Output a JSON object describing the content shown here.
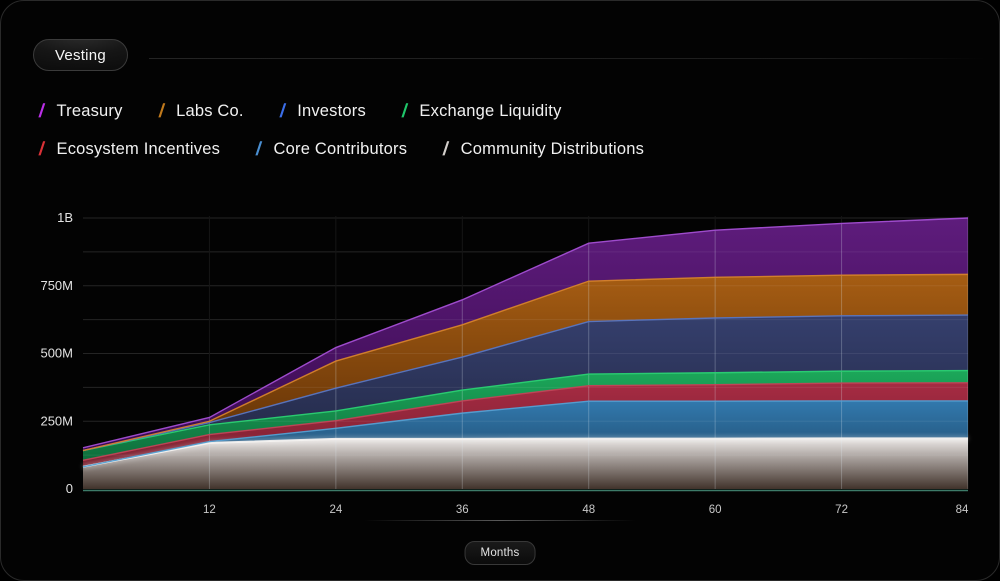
{
  "header": {
    "vesting_label": "Vesting"
  },
  "footer": {
    "x_unit_label": "Months"
  },
  "colors": {
    "background": "#030303",
    "card_border": "#2a2a2a",
    "grid_over_black_h": "#242424",
    "grid_over_black_v": "#161616",
    "grid_over_fill_v": "rgba(225,235,245,0.26)",
    "grid_over_fill_h": "rgba(255,255,255,0.07)",
    "zero_line": "#41826f",
    "y_axis_text": "#e2e2e2",
    "x_axis_text": "#c9c9c9"
  },
  "chart_data": {
    "type": "area",
    "stacked": true,
    "xlabel": "Months",
    "x": [
      0,
      12,
      24,
      36,
      48,
      60,
      72,
      84
    ],
    "x_ticks": [
      12,
      24,
      36,
      48,
      60,
      72,
      84
    ],
    "xlim": [
      0,
      84
    ],
    "ylim_millions": [
      0,
      1000
    ],
    "y_ticks": [
      {
        "value": 0,
        "label": "0"
      },
      {
        "value": 250,
        "label": "250M"
      },
      {
        "value": 500,
        "label": "500M"
      },
      {
        "value": 750,
        "label": "750M"
      },
      {
        "value": 1000,
        "label": "1B"
      }
    ],
    "grid_minor_step_millions": 125,
    "legend_rows": [
      [
        "Treasury",
        "Labs Co.",
        "Investors",
        "Exchange Liquidity"
      ],
      [
        "Ecosystem Incentives",
        "Core Contributors",
        "Community Distributions"
      ]
    ],
    "series_bottom_to_top": [
      {
        "name": "Community Distributions",
        "values_millions": [
          82,
          170,
          185,
          185,
          186,
          186,
          187,
          187
        ],
        "fill_top": "#ece9e7",
        "fill_mid": "#a29a96",
        "fill_bottom": "#41332b",
        "line": "#f4f2f0",
        "legend_color": "#d3cfcb"
      },
      {
        "name": "Core Contributors",
        "values_millions": [
          0,
          5,
          39,
          95,
          138,
          138,
          138,
          138
        ],
        "fill_top": "#3279ae",
        "fill_bottom": "#1f4a6b",
        "line": "#55a0d3",
        "legend_color": "#4a8fd2"
      },
      {
        "name": "Ecosystem Incentives",
        "values_millions": [
          24,
          26,
          28,
          45,
          57,
          61,
          66,
          67
        ],
        "fill_top": "#a62b43",
        "fill_bottom": "#79202f",
        "line": "#c24458",
        "legend_color": "#da3137"
      },
      {
        "name": "Exchange Liquidity",
        "values_millions": [
          36,
          36,
          36,
          40,
          43,
          44,
          44,
          45
        ],
        "fill_top": "#1ca85a",
        "fill_bottom": "#0e6e3c",
        "line": "#2bd173",
        "legend_color": "#1fc76a"
      },
      {
        "name": "Investors",
        "values_millions": [
          0,
          8,
          84,
          122,
          194,
          202,
          204,
          205
        ],
        "fill_top": "#353f6d",
        "fill_bottom": "#232946",
        "line": "#5a76c2",
        "legend_color": "#3b6ee8"
      },
      {
        "name": "Labs Co.",
        "values_millions": [
          0,
          5,
          100,
          119,
          149,
          150,
          150,
          150
        ],
        "fill_top": "#a65d13",
        "fill_bottom": "#5f3006",
        "line": "#d6832b",
        "legend_color": "#c17a1c"
      },
      {
        "name": "Treasury",
        "values_millions": [
          10,
          14,
          50,
          92,
          140,
          174,
          191,
          208
        ],
        "fill_top": "#5e1c7c",
        "fill_bottom": "#3a0b50",
        "line": "#a44fd4",
        "legend_color": "#bb2fe8"
      }
    ]
  }
}
